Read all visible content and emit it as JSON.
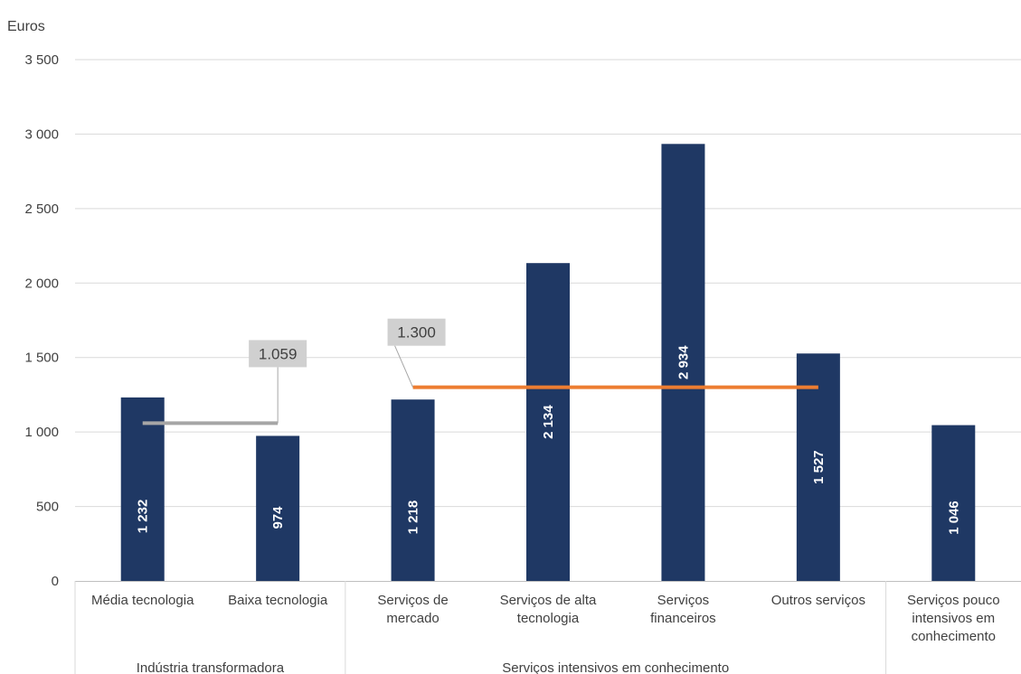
{
  "chart_data": {
    "type": "bar",
    "ylabel": "Euros",
    "ylim": [
      0,
      3500
    ],
    "yticks": [
      0,
      500,
      1000,
      1500,
      2000,
      2500,
      3000,
      3500
    ],
    "ytick_labels": [
      "0",
      "500",
      "1 000",
      "1 500",
      "2 000",
      "2 500",
      "3 000",
      "3 500"
    ],
    "grid": true,
    "categories": [
      [
        "Média tecnologia"
      ],
      [
        "Baixa tecnologia"
      ],
      [
        "Serviços de",
        "mercado"
      ],
      [
        "Serviços de alta",
        "tecnologia"
      ],
      [
        "Serviços",
        "financeiros"
      ],
      [
        "Outros serviços"
      ],
      [
        "Serviços pouco",
        "intensivos em",
        "conhecimento"
      ]
    ],
    "values": [
      1232,
      974,
      1218,
      2134,
      2934,
      1527,
      1046
    ],
    "value_labels": [
      "1 232",
      "974",
      "1 218",
      "2 134",
      "2 934",
      "1 527",
      "1 046"
    ],
    "groups": [
      {
        "label": "Indústria transformadora",
        "categories": [
          0,
          1
        ]
      },
      {
        "label": "Serviços intensivos em conhecimento",
        "categories": [
          2,
          3,
          4,
          5
        ]
      },
      {
        "label": "",
        "categories": [
          6
        ]
      }
    ],
    "reference_lines": [
      {
        "value": 1059,
        "label": "1.059",
        "from_category": 0,
        "to_category": 1,
        "color": "#a6a6a6"
      },
      {
        "value": 1300,
        "label": "1.300",
        "from_category": 2,
        "to_category": 5,
        "color": "#ed7d31"
      }
    ],
    "colors": {
      "bar": "#1f3864",
      "grid": "#d9d9d9",
      "callout_bg": "#d0d0d0"
    }
  }
}
